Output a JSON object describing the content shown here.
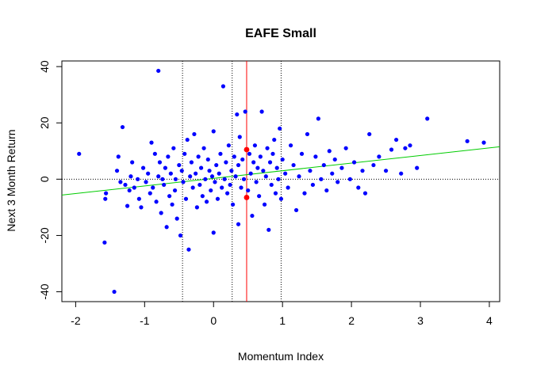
{
  "chart_data": {
    "type": "scatter",
    "title": "EAFE Small",
    "xlabel": "Momentum Index",
    "ylabel": "Next 3 Month Return",
    "xlim": [
      -2.2,
      4.15
    ],
    "ylim": [
      -43.5,
      42
    ],
    "xticks": [
      "-2",
      "-1",
      "0",
      "1",
      "2",
      "3",
      "4"
    ],
    "yticks": [
      "-40",
      "-20",
      "0",
      "20",
      "40"
    ],
    "grid": false,
    "legend": "none",
    "colors": {
      "points": "#0000ff",
      "highlight": "#ff0000",
      "fit": "#00cc00",
      "current": "#ff0000",
      "reference": "#000000"
    },
    "reference_lines": {
      "horizontal_zero": 0,
      "vertical_dotted": [
        -0.45,
        0.27,
        0.98
      ],
      "vertical_current": 0.48
    },
    "fit_line": {
      "slope": 2.7,
      "intercept": 0.3
    },
    "highlight_points": [
      {
        "x": 0.48,
        "y": 10.5
      },
      {
        "x": 0.48,
        "y": -6.5
      }
    ],
    "series": [
      {
        "points": [
          [
            -1.95,
            9
          ],
          [
            -1.58,
            -22.5
          ],
          [
            -1.56,
            -5
          ],
          [
            -1.57,
            -7
          ],
          [
            -1.44,
            -40
          ],
          [
            -1.4,
            3
          ],
          [
            -1.38,
            8
          ],
          [
            -1.32,
            18.5
          ],
          [
            -1.35,
            -1
          ],
          [
            -1.28,
            -2
          ],
          [
            -1.25,
            -9.5
          ],
          [
            -1.22,
            -4
          ],
          [
            -1.2,
            1
          ],
          [
            -1.18,
            6
          ],
          [
            -1.15,
            -3
          ],
          [
            -1.1,
            0
          ],
          [
            -1.08,
            -7
          ],
          [
            -1.05,
            -10
          ],
          [
            -1.02,
            4
          ],
          [
            -0.98,
            -1
          ],
          [
            -0.95,
            2
          ],
          [
            -0.92,
            -5
          ],
          [
            -0.9,
            13
          ],
          [
            -0.88,
            -3
          ],
          [
            -0.85,
            9
          ],
          [
            -0.83,
            -8
          ],
          [
            -0.8,
            1
          ],
          [
            -0.8,
            38.5
          ],
          [
            -0.78,
            6
          ],
          [
            -0.76,
            -12
          ],
          [
            -0.74,
            0
          ],
          [
            -0.72,
            -2
          ],
          [
            -0.7,
            4
          ],
          [
            -0.68,
            -17
          ],
          [
            -0.66,
            8
          ],
          [
            -0.64,
            -6
          ],
          [
            -0.62,
            2
          ],
          [
            -0.6,
            -9
          ],
          [
            -0.58,
            11
          ],
          [
            -0.56,
            -4
          ],
          [
            -0.55,
            0
          ],
          [
            -0.53,
            -14
          ],
          [
            -0.5,
            5
          ],
          [
            -0.48,
            -20
          ],
          [
            -0.46,
            3
          ],
          [
            -0.44,
            -1
          ],
          [
            -0.42,
            9
          ],
          [
            -0.4,
            -7
          ],
          [
            -0.38,
            14
          ],
          [
            -0.36,
            -25
          ],
          [
            -0.34,
            1
          ],
          [
            -0.32,
            6
          ],
          [
            -0.3,
            -3
          ],
          [
            -0.28,
            16
          ],
          [
            -0.26,
            2
          ],
          [
            -0.24,
            -10
          ],
          [
            -0.22,
            8
          ],
          [
            -0.2,
            -2
          ],
          [
            -0.18,
            4
          ],
          [
            -0.16,
            -6
          ],
          [
            -0.14,
            11
          ],
          [
            -0.12,
            0
          ],
          [
            -0.1,
            -8
          ],
          [
            -0.08,
            7
          ],
          [
            -0.06,
            3
          ],
          [
            -0.04,
            -4
          ],
          [
            -0.02,
            1
          ],
          [
            0.0,
            -19
          ],
          [
            0.0,
            17
          ],
          [
            0.02,
            -1
          ],
          [
            0.04,
            5
          ],
          [
            0.06,
            -7
          ],
          [
            0.08,
            2
          ],
          [
            0.1,
            9
          ],
          [
            0.12,
            -3
          ],
          [
            0.14,
            33
          ],
          [
            0.16,
            0
          ],
          [
            0.18,
            6
          ],
          [
            0.2,
            -5
          ],
          [
            0.22,
            12
          ],
          [
            0.24,
            -2
          ],
          [
            0.26,
            3
          ],
          [
            0.28,
            -9
          ],
          [
            0.3,
            8
          ],
          [
            0.32,
            1
          ],
          [
            0.34,
            23
          ],
          [
            0.36,
            -16
          ],
          [
            0.36,
            5
          ],
          [
            0.38,
            15
          ],
          [
            0.4,
            -3
          ],
          [
            0.42,
            7
          ],
          [
            0.44,
            0
          ],
          [
            0.46,
            24
          ],
          [
            0.5,
            -4
          ],
          [
            0.52,
            9
          ],
          [
            0.54,
            2
          ],
          [
            0.56,
            -13
          ],
          [
            0.58,
            6
          ],
          [
            0.6,
            12
          ],
          [
            0.62,
            -1
          ],
          [
            0.64,
            4
          ],
          [
            0.66,
            -6
          ],
          [
            0.68,
            8
          ],
          [
            0.7,
            24
          ],
          [
            0.72,
            3
          ],
          [
            0.74,
            -9
          ],
          [
            0.76,
            1
          ],
          [
            0.78,
            11
          ],
          [
            0.8,
            -18
          ],
          [
            0.82,
            6
          ],
          [
            0.84,
            -2
          ],
          [
            0.86,
            9
          ],
          [
            0.88,
            14
          ],
          [
            0.9,
            -5
          ],
          [
            0.92,
            4
          ],
          [
            0.94,
            0
          ],
          [
            0.96,
            18
          ],
          [
            0.98,
            -7
          ],
          [
            1.0,
            7
          ],
          [
            1.04,
            2
          ],
          [
            1.08,
            -3
          ],
          [
            1.12,
            12
          ],
          [
            1.16,
            5
          ],
          [
            1.2,
            -11
          ],
          [
            1.24,
            1
          ],
          [
            1.28,
            9
          ],
          [
            1.32,
            -5
          ],
          [
            1.36,
            16
          ],
          [
            1.4,
            3
          ],
          [
            1.44,
            -2
          ],
          [
            1.48,
            8
          ],
          [
            1.52,
            21.5
          ],
          [
            1.56,
            0
          ],
          [
            1.6,
            5
          ],
          [
            1.64,
            -4
          ],
          [
            1.68,
            10
          ],
          [
            1.72,
            2
          ],
          [
            1.76,
            7
          ],
          [
            1.8,
            -1
          ],
          [
            1.86,
            4
          ],
          [
            1.92,
            11
          ],
          [
            1.98,
            0
          ],
          [
            2.04,
            6
          ],
          [
            2.1,
            -3
          ],
          [
            2.16,
            3
          ],
          [
            2.2,
            -5
          ],
          [
            2.26,
            16
          ],
          [
            2.32,
            5
          ],
          [
            2.4,
            8
          ],
          [
            2.5,
            3
          ],
          [
            2.58,
            10.5
          ],
          [
            2.65,
            14
          ],
          [
            2.72,
            2
          ],
          [
            2.78,
            11
          ],
          [
            2.85,
            12
          ],
          [
            2.95,
            4
          ],
          [
            3.1,
            21.5
          ],
          [
            3.68,
            13.5
          ],
          [
            3.92,
            13
          ]
        ]
      }
    ]
  }
}
